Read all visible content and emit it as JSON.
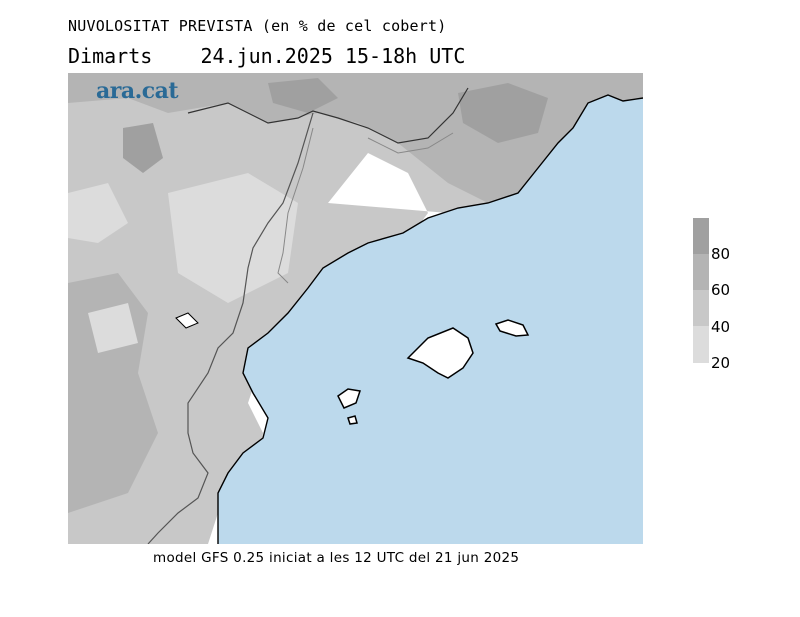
{
  "header": {
    "title": "NUVOLOSITAT PREVISTA (en % de cel cobert)",
    "subtitle": "Dimarts    24.jun.2025 15-18h UTC"
  },
  "logo": {
    "text": "ara.cat"
  },
  "legend": {
    "labels": [
      "80",
      "60",
      "40",
      "20"
    ],
    "colors": [
      "#a0a0a0",
      "#b4b4b4",
      "#c8c8c8",
      "#dcdcdc"
    ]
  },
  "footer": {
    "text": "model GFS 0.25 iniciat a les 12 UTC del 21 jun 2025"
  },
  "colors": {
    "sea": "#bcd9ec",
    "clear": "#ffffff",
    "cloud_20": "#dcdcdc",
    "cloud_40": "#c8c8c8",
    "cloud_60": "#b4b4b4",
    "cloud_80": "#a0a0a0"
  }
}
